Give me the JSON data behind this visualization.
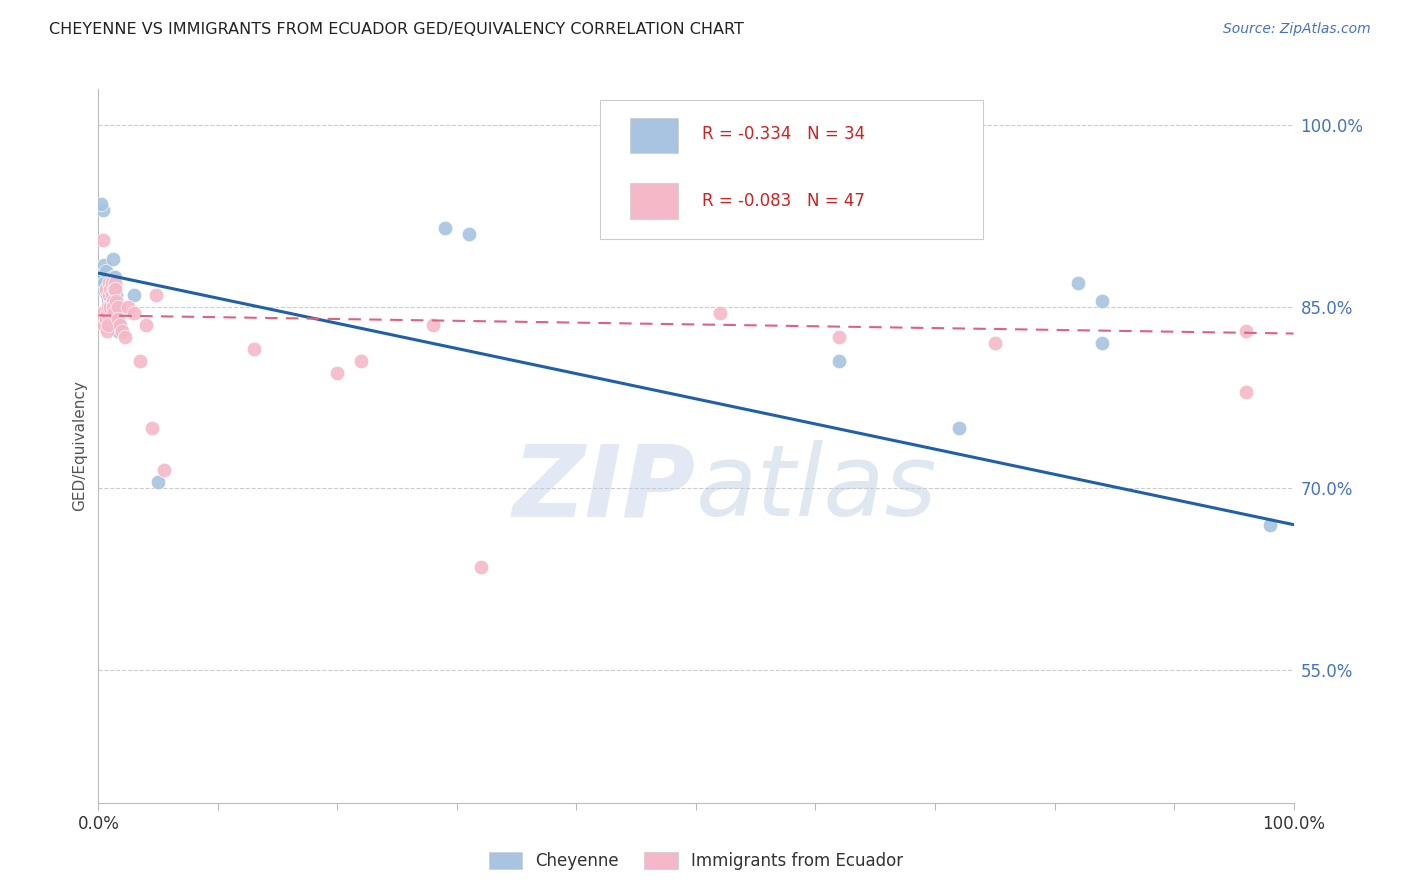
{
  "title": "CHEYENNE VS IMMIGRANTS FROM ECUADOR GED/EQUIVALENCY CORRELATION CHART",
  "source": "Source: ZipAtlas.com",
  "ylabel": "GED/Equivalency",
  "yticks": [
    100.0,
    85.0,
    70.0,
    55.0
  ],
  "ytick_labels": [
    "100.0%",
    "85.0%",
    "70.0%",
    "55.0%"
  ],
  "legend_blue_r": "-0.334",
  "legend_blue_n": "34",
  "legend_pink_r": "-0.083",
  "legend_pink_n": "47",
  "legend_label_blue": "Cheyenne",
  "legend_label_pink": "Immigrants from Ecuador",
  "blue_color": "#a8c4e0",
  "pink_color": "#f4b8c8",
  "line_blue": "#2060a8",
  "line_pink": "#e06080",
  "watermark_zip": "ZIP",
  "watermark_atlas": "atlas",
  "cheyenne_x": [
    0.003,
    0.004,
    0.004,
    0.005,
    0.005,
    0.006,
    0.006,
    0.007,
    0.008,
    0.008,
    0.009,
    0.01,
    0.011,
    0.012,
    0.012,
    0.013,
    0.014,
    0.015,
    0.002,
    0.008,
    0.013,
    0.014,
    0.015,
    0.016,
    0.03,
    0.05,
    0.29,
    0.31,
    0.62,
    0.72,
    0.82,
    0.84,
    0.84,
    0.98
  ],
  "cheyenne_y": [
    87.5,
    93.0,
    86.5,
    88.5,
    87.0,
    88.0,
    86.5,
    86.0,
    85.5,
    84.5,
    86.5,
    85.5,
    87.0,
    89.0,
    87.5,
    86.0,
    87.5,
    86.0,
    93.5,
    85.0,
    85.5,
    84.0,
    83.5,
    83.0,
    86.0,
    70.5,
    91.5,
    91.0,
    80.5,
    75.0,
    87.0,
    85.5,
    82.0,
    67.0
  ],
  "ecuador_x": [
    0.002,
    0.003,
    0.004,
    0.004,
    0.005,
    0.005,
    0.006,
    0.006,
    0.007,
    0.007,
    0.008,
    0.008,
    0.009,
    0.009,
    0.01,
    0.01,
    0.011,
    0.011,
    0.012,
    0.012,
    0.013,
    0.013,
    0.014,
    0.014,
    0.015,
    0.016,
    0.016,
    0.018,
    0.02,
    0.022,
    0.025,
    0.03,
    0.035,
    0.04,
    0.045,
    0.048,
    0.055,
    0.13,
    0.2,
    0.22,
    0.28,
    0.32,
    0.52,
    0.62,
    0.75,
    0.96,
    0.96
  ],
  "ecuador_y": [
    84.5,
    84.0,
    84.5,
    90.5,
    84.0,
    83.5,
    86.5,
    84.0,
    83.0,
    84.5,
    85.0,
    83.5,
    87.0,
    86.0,
    85.0,
    86.5,
    87.0,
    86.0,
    85.5,
    85.0,
    84.5,
    86.5,
    87.0,
    86.5,
    85.5,
    85.0,
    84.0,
    83.5,
    83.0,
    82.5,
    85.0,
    84.5,
    80.5,
    83.5,
    75.0,
    86.0,
    71.5,
    81.5,
    79.5,
    80.5,
    83.5,
    63.5,
    84.5,
    82.5,
    82.0,
    83.0,
    78.0
  ],
  "xlim": [
    0.0,
    1.0
  ],
  "ylim": [
    44.0,
    103.0
  ],
  "blue_line_x0": 0.0,
  "blue_line_x1": 1.0,
  "blue_line_y0": 87.8,
  "blue_line_y1": 67.0,
  "pink_line_x0": 0.0,
  "pink_line_x1": 1.0,
  "pink_line_y0": 84.3,
  "pink_line_y1": 82.8
}
